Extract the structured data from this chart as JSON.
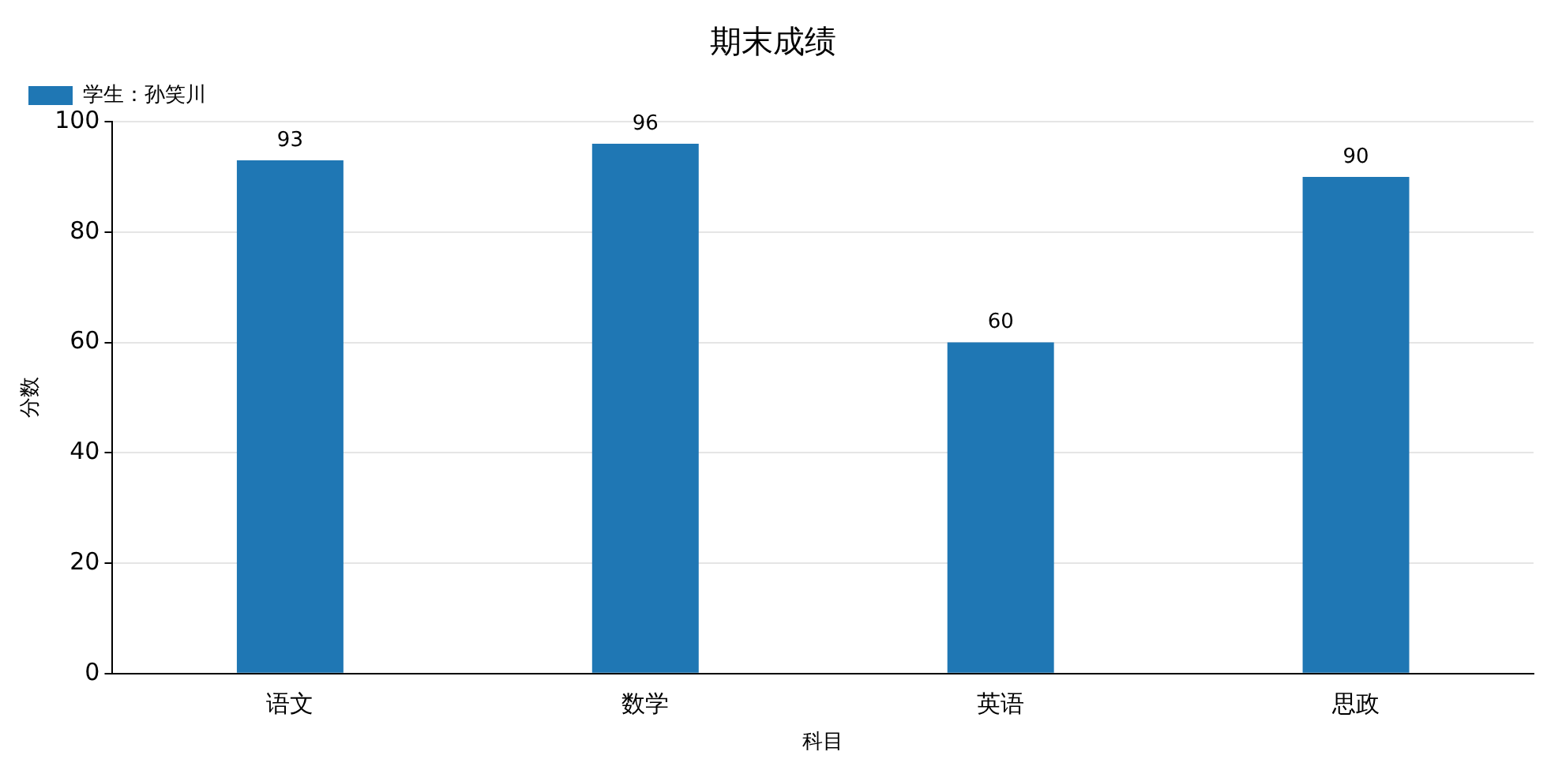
{
  "chart_data": {
    "type": "bar",
    "title": "期末成绩",
    "xlabel": "科目",
    "ylabel": "分数",
    "categories": [
      "语文",
      "数学",
      "英语",
      "思政"
    ],
    "series": [
      {
        "name": "学生：孙笑川",
        "color": "#1f77b4",
        "values": [
          93,
          96,
          60,
          90
        ]
      }
    ],
    "ylim": [
      0,
      100
    ],
    "yticks": [
      0,
      20,
      40,
      60,
      80,
      100
    ],
    "grid": "y",
    "legend": "top left",
    "data_labels": true
  }
}
